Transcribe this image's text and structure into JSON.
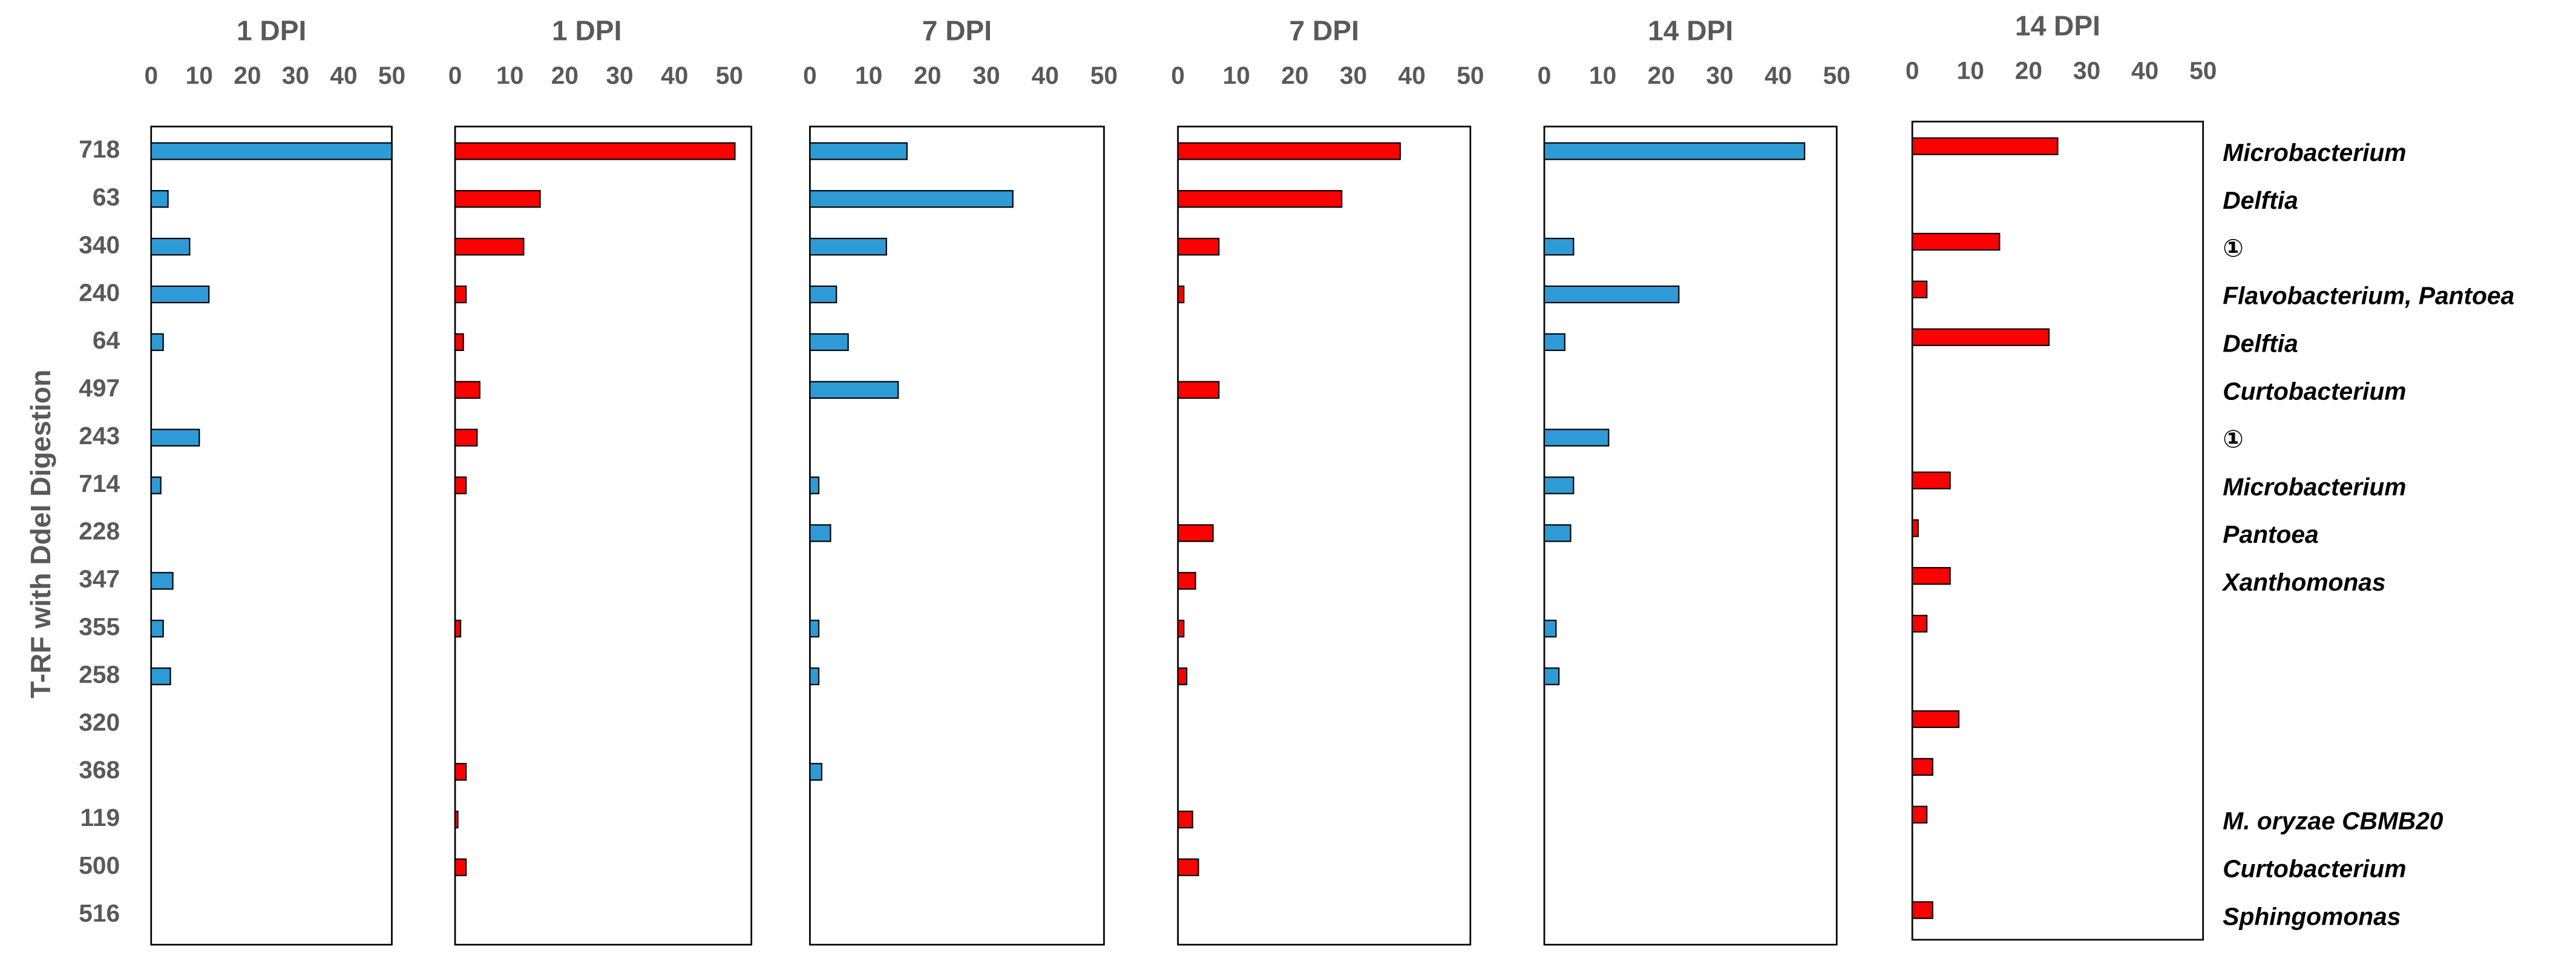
{
  "y_axis_label": "T-RF with DdeI Digestion",
  "categories": [
    "718",
    "63",
    "340",
    "240",
    "64",
    "497",
    "243",
    "714",
    "228",
    "347",
    "355",
    "258",
    "320",
    "368",
    "119",
    "500",
    "516"
  ],
  "taxa": [
    "Microbacterium",
    "Delftia",
    "①",
    "Flavobacterium, Pantoea",
    "Delftia",
    "Curtobacterium",
    "①",
    "Microbacterium",
    "Pantoea",
    "Xanthomonas",
    null,
    null,
    null,
    null,
    "M. oryzae CBMB20",
    "Curtobacterium",
    "Sphingomonas"
  ],
  "chart_data": [
    {
      "type": "bar",
      "orientation": "horizontal",
      "title": "1 DPI",
      "color": "#2e9bd6",
      "xlim": [
        0,
        50
      ],
      "xticks": [
        0,
        10,
        20,
        30,
        40,
        50
      ],
      "values": [
        50,
        3.5,
        8,
        12,
        2.5,
        null,
        10,
        2,
        null,
        4.5,
        2.5,
        4,
        null,
        null,
        null,
        null,
        null
      ]
    },
    {
      "type": "bar",
      "orientation": "horizontal",
      "title": "1 DPI",
      "color": "#ff0000",
      "xlim": [
        0,
        54
      ],
      "xticks": [
        0,
        10,
        20,
        30,
        40,
        50
      ],
      "values": [
        51,
        15.5,
        12.5,
        2,
        1.5,
        4.5,
        4,
        2,
        null,
        null,
        1,
        null,
        null,
        2,
        0.5,
        2,
        null
      ]
    },
    {
      "type": "bar",
      "orientation": "horizontal",
      "title": "7 DPI",
      "color": "#2e9bd6",
      "xlim": [
        0,
        50
      ],
      "xticks": [
        0,
        10,
        20,
        30,
        40,
        50
      ],
      "values": [
        16.5,
        34.5,
        13,
        4.5,
        6.5,
        15,
        null,
        1.5,
        3.5,
        null,
        1.5,
        1.5,
        null,
        2,
        null,
        null,
        null
      ]
    },
    {
      "type": "bar",
      "orientation": "horizontal",
      "title": "7 DPI",
      "color": "#ff0000",
      "xlim": [
        0,
        50
      ],
      "xticks": [
        0,
        10,
        20,
        30,
        40,
        50
      ],
      "values": [
        38,
        28,
        7,
        1,
        null,
        7,
        null,
        null,
        6,
        3,
        1,
        1.5,
        null,
        null,
        2.5,
        3.5,
        null
      ]
    },
    {
      "type": "bar",
      "orientation": "horizontal",
      "title": "14 DPI",
      "color": "#2e9bd6",
      "xlim": [
        0,
        50
      ],
      "xticks": [
        0,
        10,
        20,
        30,
        40,
        50
      ],
      "values": [
        44.5,
        null,
        5,
        23,
        3.5,
        null,
        11,
        5,
        4.5,
        null,
        2,
        2.5,
        null,
        null,
        null,
        null,
        null
      ]
    },
    {
      "type": "bar",
      "orientation": "horizontal",
      "title": "14 DPI",
      "color": "#ff0000",
      "xlim": [
        0,
        50
      ],
      "xticks": [
        0,
        10,
        20,
        30,
        40,
        50
      ],
      "values": [
        25,
        null,
        15,
        2.5,
        23.5,
        null,
        null,
        6.5,
        1,
        6.5,
        2.5,
        null,
        8,
        3.5,
        2.5,
        null,
        3.5
      ]
    }
  ]
}
